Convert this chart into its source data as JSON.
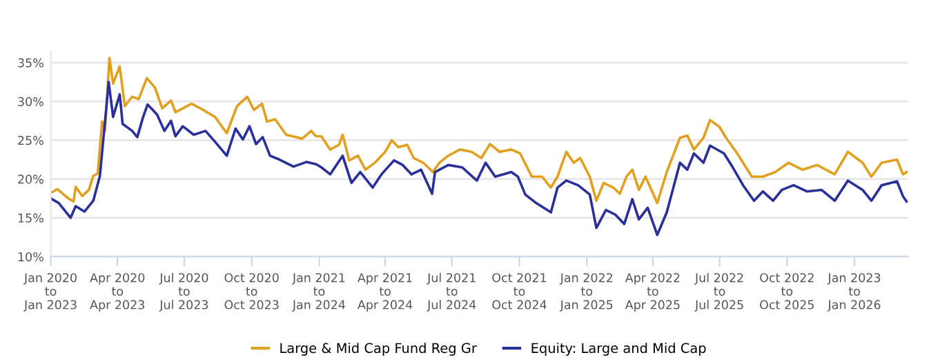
{
  "chart_data": {
    "type": "line",
    "xlim": [
      "2020-01-01",
      "2023-03-15"
    ],
    "xticks": [
      {
        "value": "2020-01-01",
        "label": "Jan 2020\nto\nJan 2023"
      },
      {
        "value": "2020-04-01",
        "label": "Apr 2020\nto\nApr 2023"
      },
      {
        "value": "2020-07-01",
        "label": "Jul 2020\nto\nJul 2023"
      },
      {
        "value": "2020-10-01",
        "label": "Oct 2020\nto\nOct 2023"
      },
      {
        "value": "2021-01-01",
        "label": "Jan 2021\nto\nJan 2024"
      },
      {
        "value": "2021-04-01",
        "label": "Apr 2021\nto\nApr 2024"
      },
      {
        "value": "2021-07-01",
        "label": "Jul 2021\nto\nJul 2024"
      },
      {
        "value": "2021-10-01",
        "label": "Oct 2021\nto\nOct 2024"
      },
      {
        "value": "2022-01-01",
        "label": "Jan 2022\nto\nJan 2025"
      },
      {
        "value": "2022-04-01",
        "label": "Apr 2022\nto\nApr 2025"
      },
      {
        "value": "2022-07-01",
        "label": "Jul 2022\nto\nJul 2025"
      },
      {
        "value": "2022-10-01",
        "label": "Oct 2022\nto\nOct 2025"
      },
      {
        "value": "2023-01-01",
        "label": "Jan 2023\nto\nJan 2026"
      }
    ],
    "ylim": [
      10,
      36.5
    ],
    "yticks": [
      {
        "value": 10,
        "label": "10%"
      },
      {
        "value": 15,
        "label": "15%"
      },
      {
        "value": 20,
        "label": "20%"
      },
      {
        "value": 25,
        "label": "25%"
      },
      {
        "value": 30,
        "label": "30%"
      },
      {
        "value": 35,
        "label": "35%"
      }
    ],
    "grid": "y",
    "legend": "bottom",
    "marker": "none",
    "line_style": "solid",
    "series": [
      {
        "name": "Large & Mid Cap Fund Reg Gr",
        "color": "#e0a020",
        "x": [
          "2020-01-01",
          "2020-01-10",
          "2020-01-25",
          "2020-02-01",
          "2020-02-04",
          "2020-02-13",
          "2020-02-22",
          "2020-02-28",
          "2020-03-05",
          "2020-03-11",
          "2020-03-15",
          "2020-03-21",
          "2020-03-26",
          "2020-04-04",
          "2020-04-11",
          "2020-04-21",
          "2020-04-30",
          "2020-05-11",
          "2020-05-22",
          "2020-06-01",
          "2020-06-13",
          "2020-06-19",
          "2020-07-11",
          "2020-07-27",
          "2020-08-12",
          "2020-08-28",
          "2020-09-11",
          "2020-09-25",
          "2020-10-04",
          "2020-10-15",
          "2020-10-22",
          "2020-11-02",
          "2020-11-17",
          "2020-12-09",
          "2020-12-21",
          "2020-12-28",
          "2021-01-04",
          "2021-01-16",
          "2021-01-28",
          "2021-02-02",
          "2021-02-11",
          "2021-02-23",
          "2021-03-05",
          "2021-03-18",
          "2021-04-01",
          "2021-04-10",
          "2021-04-19",
          "2021-05-01",
          "2021-05-10",
          "2021-05-23",
          "2021-06-05",
          "2021-06-14",
          "2021-06-26",
          "2021-07-12",
          "2021-07-28",
          "2021-08-10",
          "2021-08-22",
          "2021-09-04",
          "2021-09-20",
          "2021-10-02",
          "2021-10-18",
          "2021-11-01",
          "2021-11-13",
          "2021-11-22",
          "2021-12-04",
          "2021-12-14",
          "2021-12-23",
          "2022-01-05",
          "2022-01-14",
          "2022-01-24",
          "2022-02-06",
          "2022-02-15",
          "2022-02-24",
          "2022-03-04",
          "2022-03-13",
          "2022-03-22",
          "2022-04-07",
          "2022-04-20",
          "2022-05-08",
          "2022-05-18",
          "2022-05-27",
          "2022-06-09",
          "2022-06-18",
          "2022-07-01",
          "2022-07-10",
          "2022-07-25",
          "2022-08-14",
          "2022-08-29",
          "2022-09-15",
          "2022-10-03",
          "2022-10-22",
          "2022-11-11",
          "2022-12-05",
          "2022-12-23",
          "2023-01-12",
          "2023-01-24",
          "2023-02-07",
          "2023-02-28",
          "2023-03-08",
          "2023-03-13"
        ],
        "values": [
          18.2,
          18.7,
          17.5,
          17.1,
          19.0,
          17.8,
          18.6,
          20.4,
          20.7,
          27.4,
          26.2,
          35.6,
          32.3,
          34.5,
          29.4,
          30.6,
          30.3,
          33.0,
          31.8,
          29.1,
          30.1,
          28.6,
          29.7,
          28.9,
          28.0,
          25.9,
          29.4,
          30.6,
          28.9,
          29.7,
          27.4,
          27.7,
          25.7,
          25.2,
          26.2,
          25.5,
          25.5,
          23.8,
          24.4,
          25.7,
          22.4,
          23.0,
          21.2,
          22.1,
          23.5,
          25.0,
          24.1,
          24.4,
          22.7,
          22.1,
          20.9,
          22.1,
          23.0,
          23.8,
          23.5,
          22.7,
          24.5,
          23.5,
          23.8,
          23.3,
          20.3,
          20.3,
          18.9,
          20.3,
          23.5,
          22.1,
          22.7,
          20.3,
          17.2,
          19.5,
          18.9,
          18.1,
          20.3,
          21.2,
          18.6,
          20.3,
          16.9,
          20.9,
          25.3,
          25.6,
          23.8,
          25.3,
          27.6,
          26.7,
          25.3,
          23.3,
          20.3,
          20.3,
          20.9,
          22.1,
          21.2,
          21.8,
          20.6,
          23.5,
          22.1,
          20.3,
          22.1,
          22.5,
          20.6,
          20.9
        ]
      },
      {
        "name": "Equity: Large and Mid Cap",
        "color": "#2b2f99",
        "x": [
          "2020-01-01",
          "2020-01-12",
          "2020-01-28",
          "2020-02-04",
          "2020-02-16",
          "2020-02-28",
          "2020-03-08",
          "2020-03-20",
          "2020-03-26",
          "2020-04-04",
          "2020-04-08",
          "2020-04-21",
          "2020-04-28",
          "2020-05-06",
          "2020-05-12",
          "2020-05-25",
          "2020-06-04",
          "2020-06-13",
          "2020-06-19",
          "2020-06-29",
          "2020-07-14",
          "2020-07-30",
          "2020-08-12",
          "2020-08-28",
          "2020-09-09",
          "2020-09-19",
          "2020-09-28",
          "2020-10-07",
          "2020-10-16",
          "2020-10-26",
          "2020-11-08",
          "2020-11-27",
          "2020-12-15",
          "2020-12-28",
          "2021-01-04",
          "2021-01-16",
          "2021-02-02",
          "2021-02-14",
          "2021-02-26",
          "2021-03-15",
          "2021-03-27",
          "2021-04-13",
          "2021-04-25",
          "2021-05-07",
          "2021-05-20",
          "2021-06-04",
          "2021-06-08",
          "2021-06-26",
          "2021-07-15",
          "2021-08-04",
          "2021-08-16",
          "2021-08-29",
          "2021-09-20",
          "2021-09-29",
          "2021-10-09",
          "2021-10-24",
          "2021-11-13",
          "2021-11-22",
          "2021-12-04",
          "2021-12-20",
          "2022-01-05",
          "2022-01-14",
          "2022-01-27",
          "2022-02-09",
          "2022-02-15",
          "2022-02-21",
          "2022-03-04",
          "2022-03-13",
          "2022-03-25",
          "2022-04-07",
          "2022-04-20",
          "2022-05-08",
          "2022-05-18",
          "2022-05-27",
          "2022-06-09",
          "2022-06-18",
          "2022-07-07",
          "2022-07-19",
          "2022-08-02",
          "2022-08-17",
          "2022-08-29",
          "2022-09-12",
          "2022-09-24",
          "2022-10-10",
          "2022-10-28",
          "2022-11-17",
          "2022-12-05",
          "2022-12-23",
          "2023-01-12",
          "2023-01-24",
          "2023-02-07",
          "2023-02-28",
          "2023-03-08",
          "2023-03-13"
        ],
        "values": [
          17.5,
          16.9,
          15.0,
          16.5,
          15.8,
          17.2,
          20.4,
          32.5,
          28.0,
          30.9,
          27.1,
          26.2,
          25.4,
          28.0,
          29.6,
          28.3,
          26.2,
          27.5,
          25.5,
          26.8,
          25.7,
          26.2,
          24.8,
          23.0,
          26.5,
          25.1,
          26.8,
          24.5,
          25.4,
          23.0,
          22.5,
          21.6,
          22.2,
          21.9,
          21.5,
          20.6,
          23.0,
          19.5,
          20.9,
          18.9,
          20.6,
          22.4,
          21.8,
          20.6,
          21.2,
          18.1,
          20.9,
          21.8,
          21.5,
          19.8,
          22.1,
          20.3,
          20.9,
          20.3,
          18.0,
          16.9,
          15.7,
          18.9,
          19.8,
          19.2,
          18.0,
          13.7,
          16.0,
          15.4,
          14.8,
          14.2,
          17.4,
          14.8,
          16.3,
          12.8,
          15.7,
          22.1,
          21.2,
          23.3,
          22.1,
          24.3,
          23.3,
          21.5,
          19.2,
          17.2,
          18.4,
          17.2,
          18.6,
          19.2,
          18.4,
          18.6,
          17.2,
          19.8,
          18.6,
          17.2,
          19.2,
          19.7,
          17.8,
          17.1
        ]
      }
    ]
  }
}
